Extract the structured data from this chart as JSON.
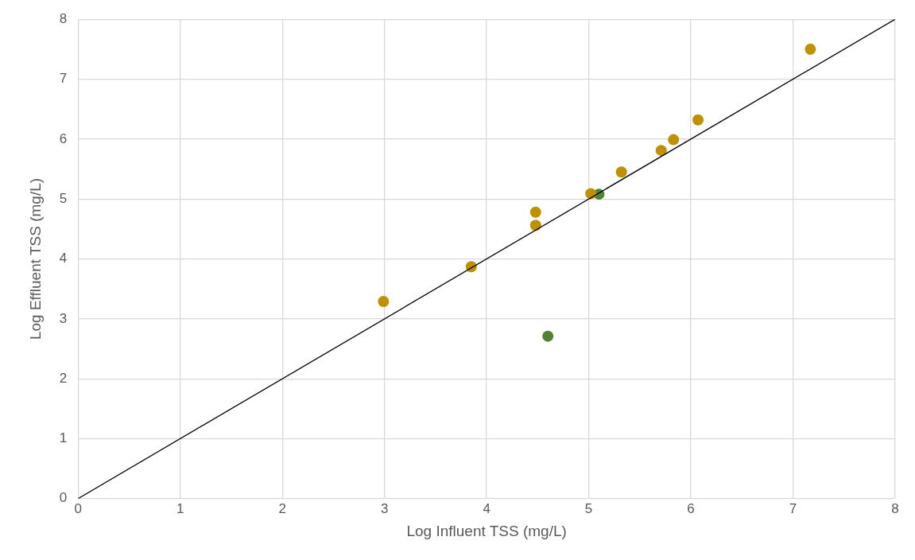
{
  "chart_data": {
    "type": "scatter",
    "xlabel": "Log Influent TSS (mg/L)",
    "ylabel": "Log Effluent TSS (mg/L)",
    "xlim": [
      0,
      8
    ],
    "ylim": [
      0,
      8
    ],
    "xticks": [
      0,
      1,
      2,
      3,
      4,
      5,
      6,
      7,
      8
    ],
    "yticks": [
      0,
      1,
      2,
      3,
      4,
      5,
      6,
      7,
      8
    ],
    "grid": true,
    "legend": false,
    "marker": "circle",
    "series": [
      {
        "color": "#bf9000",
        "x": [
          2.99,
          3.85,
          4.48,
          4.48,
          5.02,
          5.32,
          5.71,
          5.83,
          6.07,
          7.17
        ],
        "values": [
          3.29,
          3.87,
          4.56,
          4.78,
          5.09,
          5.45,
          5.81,
          5.99,
          6.32,
          7.5
        ]
      },
      {
        "color": "#548235",
        "x": [
          5.1,
          4.6
        ],
        "values": [
          5.08,
          2.71
        ]
      },
      {
        "type": "line",
        "color": "#000000",
        "x": [
          0,
          8
        ],
        "values": [
          0,
          8
        ],
        "marker": "none"
      }
    ]
  }
}
